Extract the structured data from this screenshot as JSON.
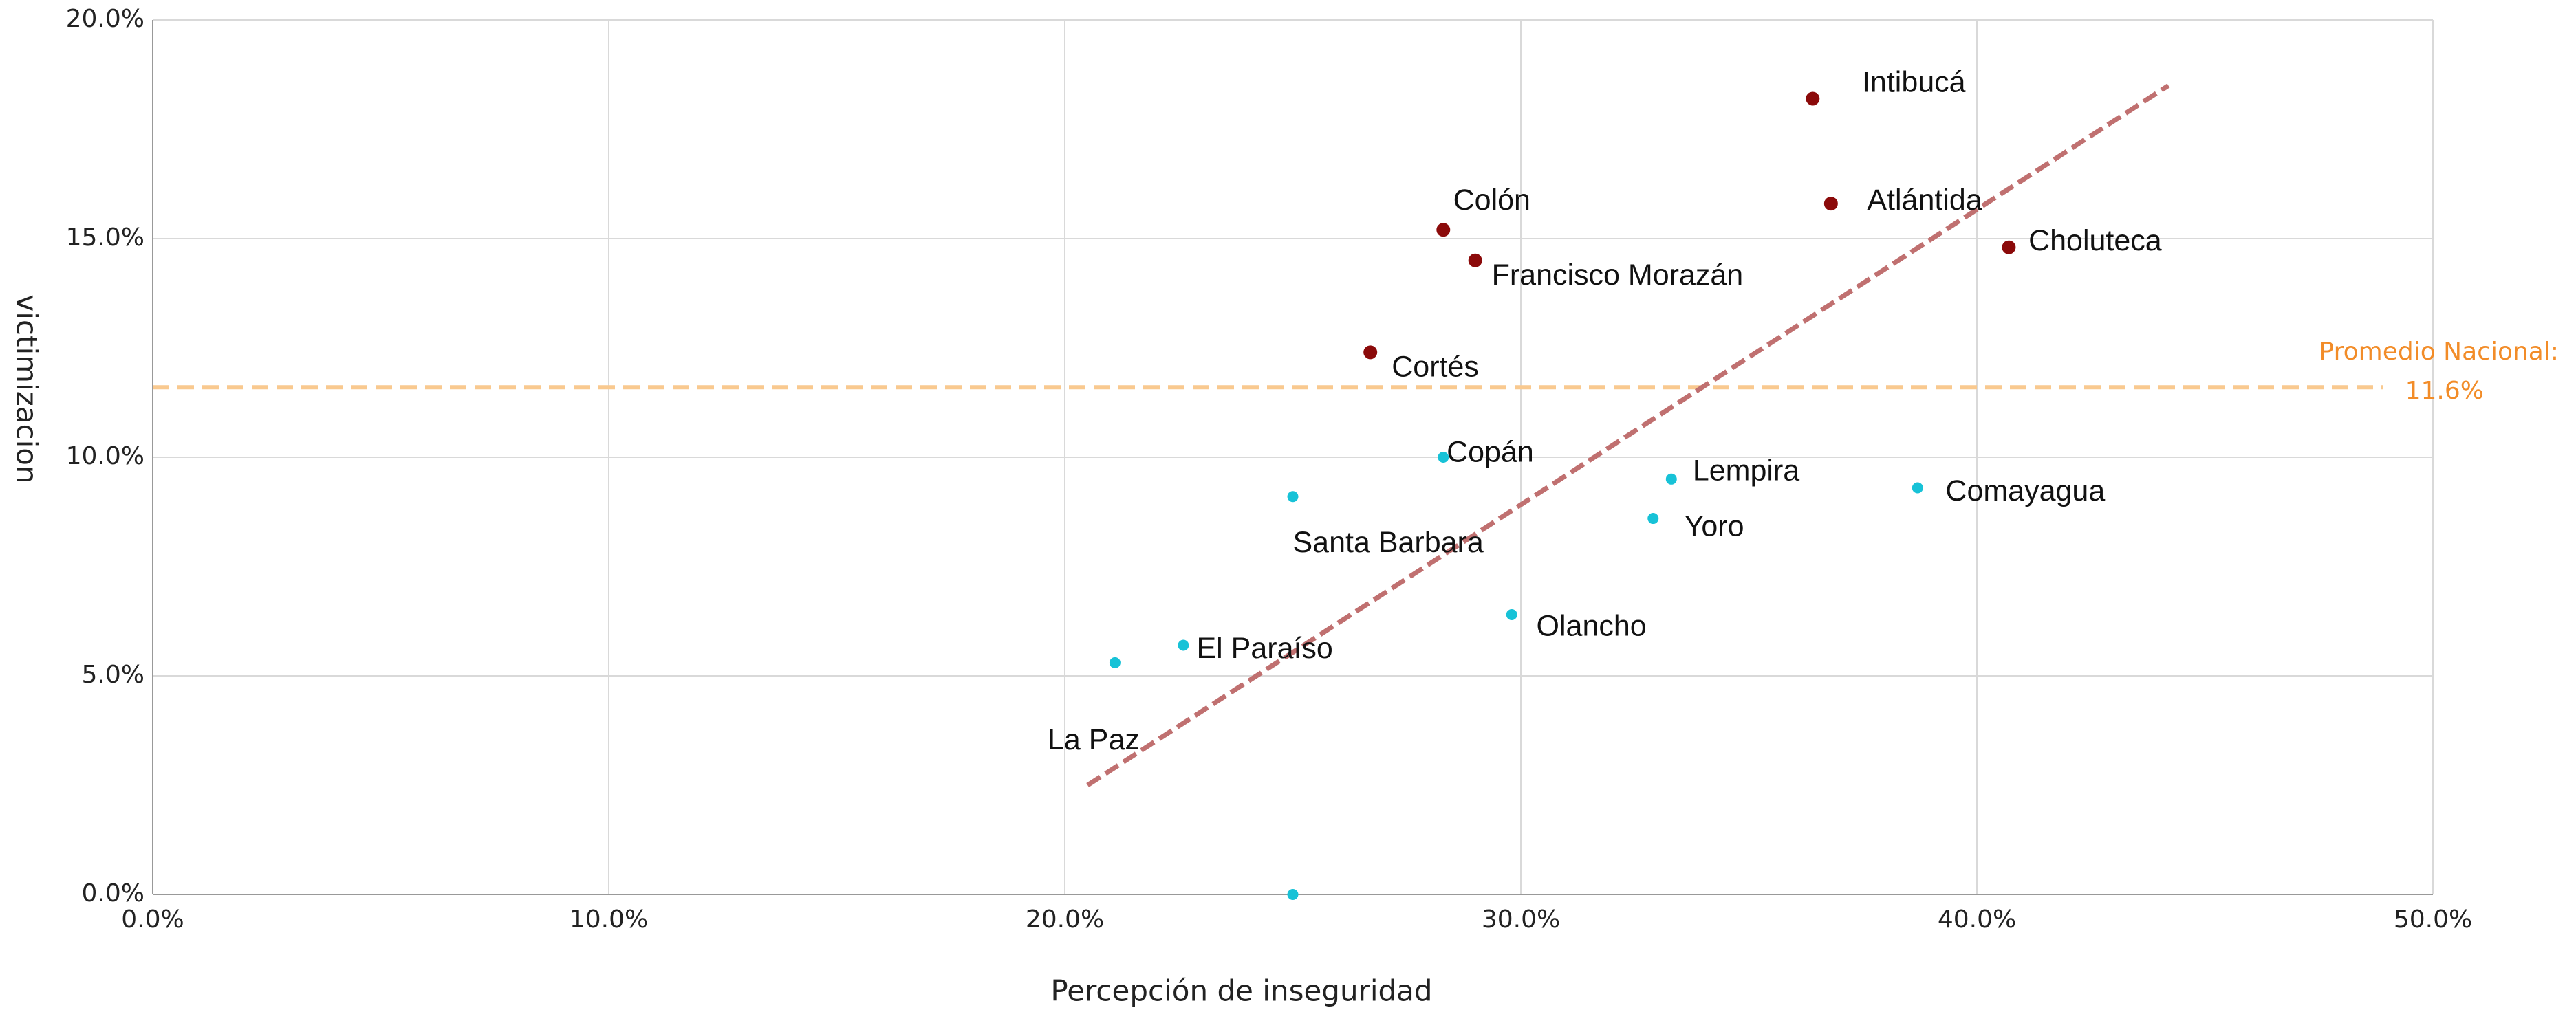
{
  "chart_data": {
    "type": "scatter",
    "x_label": "Percepción de inseguridad",
    "y_label": "victimizacion",
    "xlim": [
      0,
      50
    ],
    "xticks": [
      {
        "value": 0,
        "label": "0.0%"
      },
      {
        "value": 10,
        "label": "10.0%"
      },
      {
        "value": 20,
        "label": "20.0%"
      },
      {
        "value": 30,
        "label": "30.0%"
      },
      {
        "value": 40,
        "label": "40.0%"
      },
      {
        "value": 50,
        "label": "50.0%"
      }
    ],
    "ylim": [
      0,
      20
    ],
    "yticks": [
      {
        "value": 0,
        "label": "0.0%"
      },
      {
        "value": 5,
        "label": "5.0%"
      },
      {
        "value": 10,
        "label": "10.0%"
      },
      {
        "value": 15,
        "label": "15.0%"
      },
      {
        "value": 20,
        "label": "20.0%"
      }
    ],
    "grid": true,
    "series": [
      {
        "color": "#8b0a0a",
        "x": [
          36.4,
          36.8,
          40.7,
          28.3,
          29.0,
          26.7
        ],
        "values": [
          18.2,
          15.8,
          14.8,
          15.2,
          14.5,
          12.4
        ],
        "labels": [
          "Intibucá",
          "Atlántida",
          "Choluteca",
          "Colón",
          "Francisco Morazán",
          "Cortés"
        ]
      },
      {
        "color": "#17c2d7",
        "x": [
          28.3,
          33.3,
          38.7,
          25.0,
          32.9,
          29.8,
          22.6,
          21.1,
          25.0
        ],
        "values": [
          10.0,
          9.5,
          9.3,
          9.1,
          8.6,
          6.4,
          5.7,
          5.3,
          0.0
        ],
        "labels": [
          "Copán",
          "Lempira",
          "Comayagua",
          "Santa Barbara",
          "Yoro",
          "Olancho",
          "El Paraíso",
          "La Paz",
          null
        ]
      }
    ],
    "trendline": {
      "color": "#c07070",
      "x": [
        20.5,
        44.2
      ],
      "values": [
        2.5,
        18.5
      ]
    },
    "average": {
      "label": "Promedio Nacional:",
      "value": 11.6,
      "value_label": "11.6%",
      "color": "#f9c98f",
      "text_color": "#f28c28"
    }
  }
}
